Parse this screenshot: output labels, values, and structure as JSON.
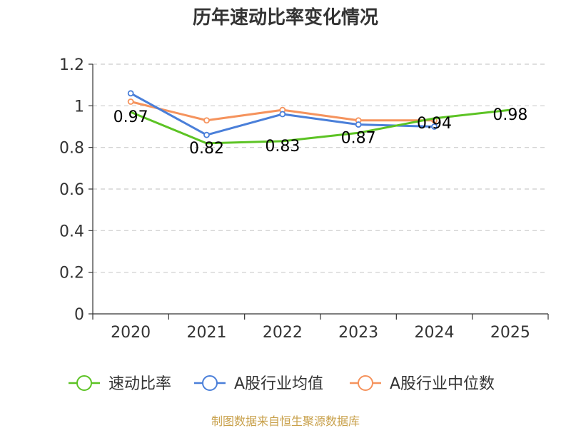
{
  "chart_data": {
    "type": "line",
    "title": "历年速动比率变化情况",
    "categories": [
      "2020",
      "2021",
      "2022",
      "2023",
      "2024",
      "2025"
    ],
    "ylim": [
      0,
      1.2
    ],
    "yticks": [
      "0",
      "0.2",
      "0.4",
      "0.6",
      "0.8",
      "1",
      "1.2"
    ],
    "grid": true,
    "legend_position": "bottom",
    "series": [
      {
        "name": "速动比率",
        "color": "#5cc324",
        "values": [
          0.97,
          0.82,
          0.83,
          0.87,
          0.94,
          0.98
        ],
        "labels": [
          "0.97",
          "0.82",
          "0.83",
          "0.87",
          "0.94",
          "0.98"
        ],
        "show_labels": true
      },
      {
        "name": "A股行业均值",
        "color": "#4a7fd9",
        "values": [
          1.06,
          0.86,
          0.96,
          0.91,
          0.9,
          null
        ],
        "show_labels": false
      },
      {
        "name": "A股行业中位数",
        "color": "#f5935d",
        "values": [
          1.02,
          0.93,
          0.98,
          0.93,
          0.93,
          null
        ],
        "show_labels": false
      }
    ],
    "source": "制图数据来自恒生聚源数据库"
  }
}
